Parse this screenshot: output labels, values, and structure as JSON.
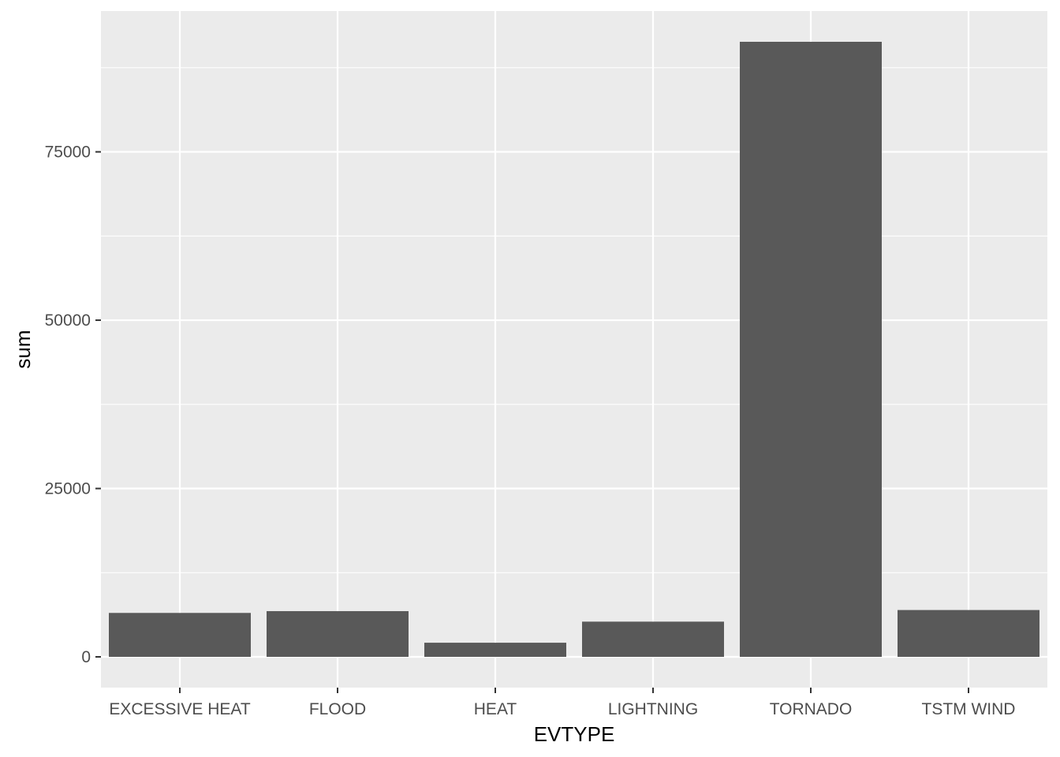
{
  "chart_data": {
    "type": "bar",
    "title": "",
    "xlabel": "EVTYPE",
    "ylabel": "sum",
    "categories": [
      "EXCESSIVE HEAT",
      "FLOOD",
      "HEAT",
      "LIGHTNING",
      "TORNADO",
      "TSTM WIND"
    ],
    "values": [
      6525,
      6789,
      2100,
      5230,
      91346,
      6957
    ],
    "ylim": [
      -4567,
      95913
    ],
    "yticks": [
      0,
      25000,
      50000,
      75000
    ],
    "ytick_labels": [
      "0",
      "25000",
      "50000",
      "75000"
    ],
    "grid": true,
    "legend": "none",
    "colors": {
      "panel": "#ebebeb",
      "grid": "#ffffff",
      "bar": "#595959",
      "tick": "#333333",
      "tick_text": "#4d4d4d"
    }
  }
}
